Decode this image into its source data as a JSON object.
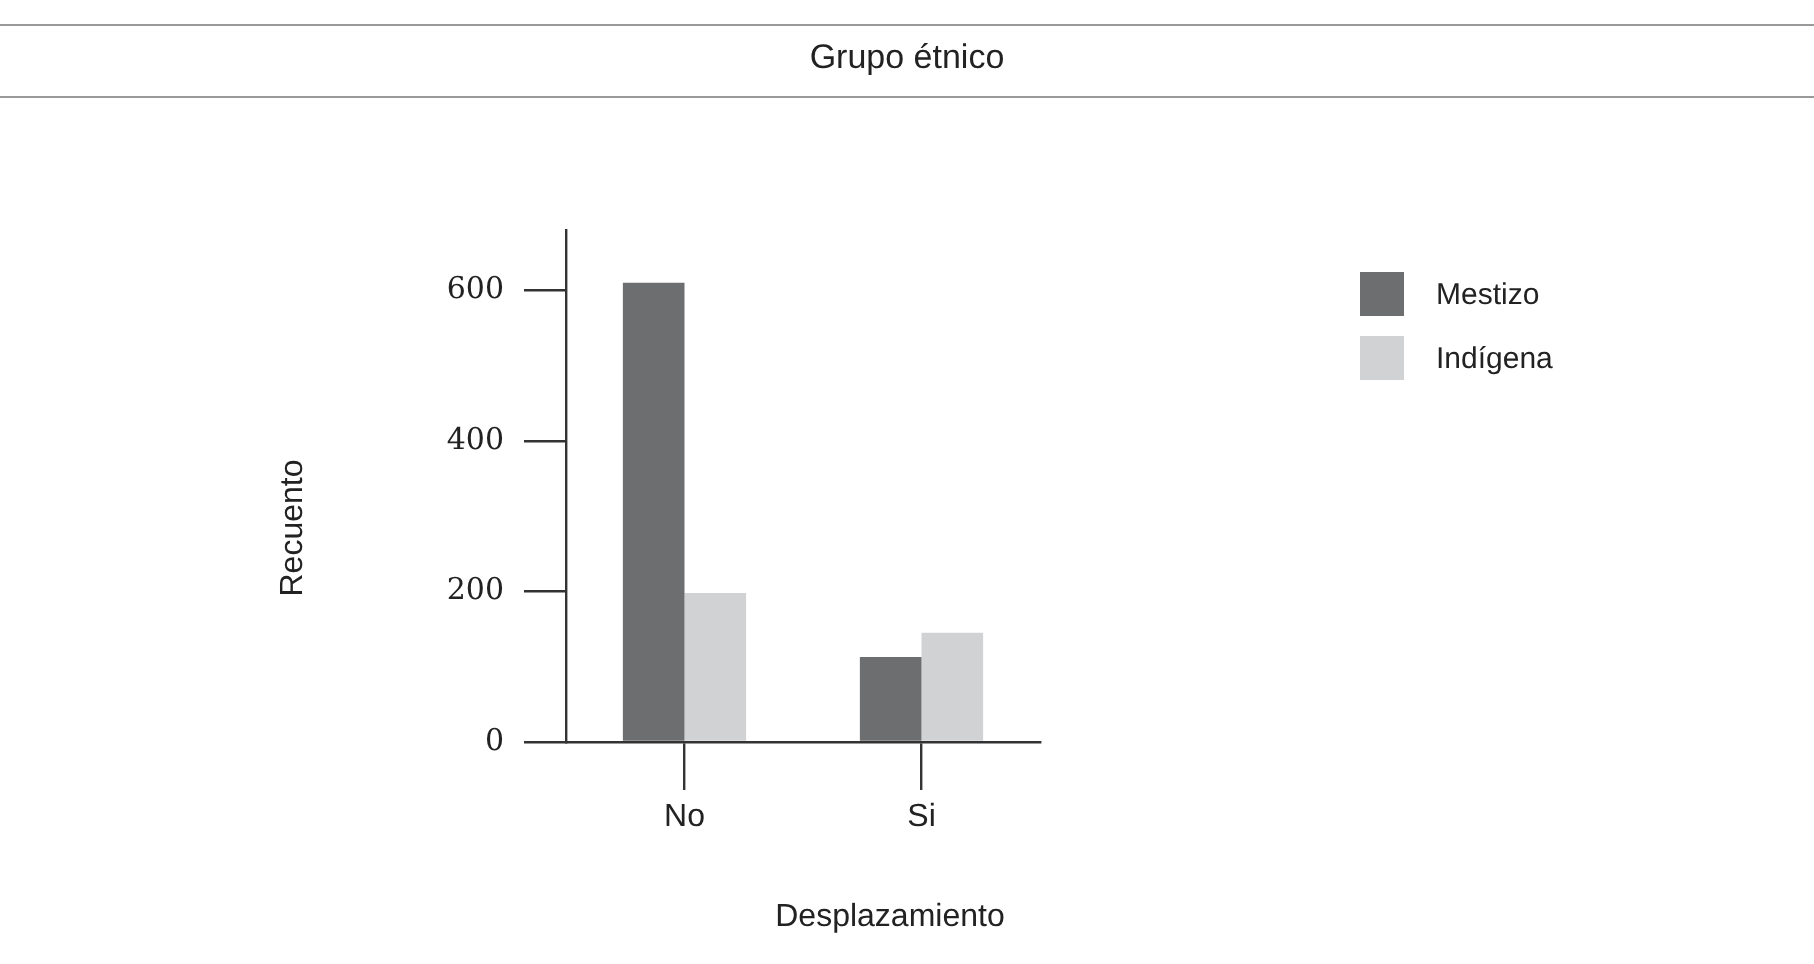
{
  "chart_data": {
    "type": "bar",
    "title": "Grupo étnico",
    "xlabel": "Desplazamiento",
    "ylabel": "Recuento",
    "categories": [
      "No",
      "Si"
    ],
    "series": [
      {
        "name": "Mestizo",
        "color": "#6d6e70",
        "values": [
          610,
          113
        ]
      },
      {
        "name": "Indígena",
        "color": "#d1d2d4",
        "values": [
          198,
          145
        ]
      }
    ],
    "ylim": [
      0,
      680
    ],
    "yticks": [
      0,
      200,
      400,
      600
    ],
    "grid": false,
    "legend": "right"
  }
}
